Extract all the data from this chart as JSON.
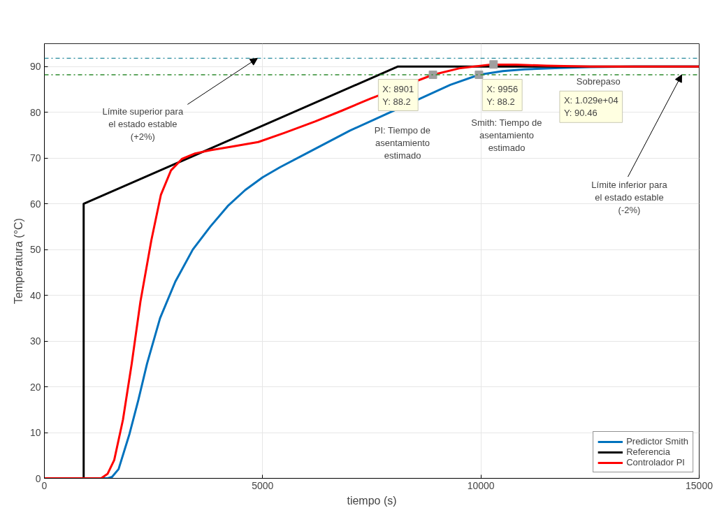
{
  "chart_data": {
    "type": "line",
    "xlabel": "tiempo (s)",
    "ylabel": "Temperatura (°C)",
    "xlim": [
      0,
      15000
    ],
    "ylim": [
      0,
      95
    ],
    "xticks": [
      0,
      5000,
      10000,
      15000
    ],
    "yticks": [
      0,
      10,
      20,
      30,
      40,
      50,
      60,
      70,
      80,
      90
    ],
    "grid": true,
    "legend": "bottom right",
    "line_style": "solid",
    "marker": "none",
    "series": [
      {
        "name": "Predictor Smith",
        "color": "#0072bd",
        "x": [
          0,
          1450,
          1550,
          1700,
          1950,
          2150,
          2350,
          2650,
          3000,
          3400,
          3800,
          4200,
          4600,
          5000,
          5400,
          6000,
          7000,
          7600,
          9300,
          9956,
          10500,
          11000,
          11800,
          12500,
          13500,
          15000
        ],
        "values": [
          0,
          0,
          0.3,
          2,
          9.7,
          17,
          25,
          35,
          43,
          50,
          55,
          59.5,
          63,
          65.8,
          68,
          71,
          76,
          78.6,
          86,
          88.2,
          89,
          89.4,
          89.7,
          89.9,
          90,
          90
        ]
      },
      {
        "name": "Referencia",
        "color": "#000000",
        "x": [
          0,
          900,
          900,
          8100,
          15000
        ],
        "values": [
          0,
          0,
          60,
          90,
          90
        ]
      },
      {
        "name": "Controlador PI",
        "color": "#ff0000",
        "x": [
          0,
          1300,
          1450,
          1600,
          1800,
          2000,
          2200,
          2450,
          2670,
          2900,
          3150,
          3450,
          3800,
          4300,
          4900,
          5500,
          6200,
          6800,
          7470,
          8901,
          9500,
          10190,
          10800,
          11500,
          12500,
          13500,
          15000
        ],
        "values": [
          0,
          0,
          1,
          4,
          12.8,
          25,
          38.6,
          52,
          62,
          67.3,
          69.8,
          71,
          71.7,
          72.5,
          73.5,
          75.5,
          78,
          80.3,
          83,
          88.2,
          89.6,
          90.4,
          90.4,
          90.2,
          90,
          90,
          90
        ]
      },
      {
        "type": "scatter",
        "marker": "square",
        "color": "#a0a0a0",
        "x": [
          8901,
          9956,
          10290
        ],
        "values": [
          88.2,
          88.2,
          90.46
        ]
      }
    ],
    "ref_lines": [
      {
        "axis": "y",
        "value": 91.8,
        "color": "#268a9c",
        "line_style": "dashdot"
      },
      {
        "axis": "y",
        "value": 88.2,
        "color": "#2e8b2e",
        "line_style": "dashdot"
      }
    ],
    "annotations": [
      "Sobrepaso",
      "X: 1.029e+04\nY: 90.46",
      "X: 8901\nY: 88.2",
      "X: 9956\nY: 88.2",
      "PI: Tiempo de\nasentamiento\nestimado",
      "Smith: Tiempo de\nasentamiento\nestimado",
      {
        "text": "Límite superior para\nel estado estable\n(+2%)",
        "x": 4880,
        "y": 91.8
      },
      {
        "text": "Límite inferior para\nel estado estable\n(-2%)",
        "x": 14600,
        "y": 88.2
      }
    ]
  }
}
